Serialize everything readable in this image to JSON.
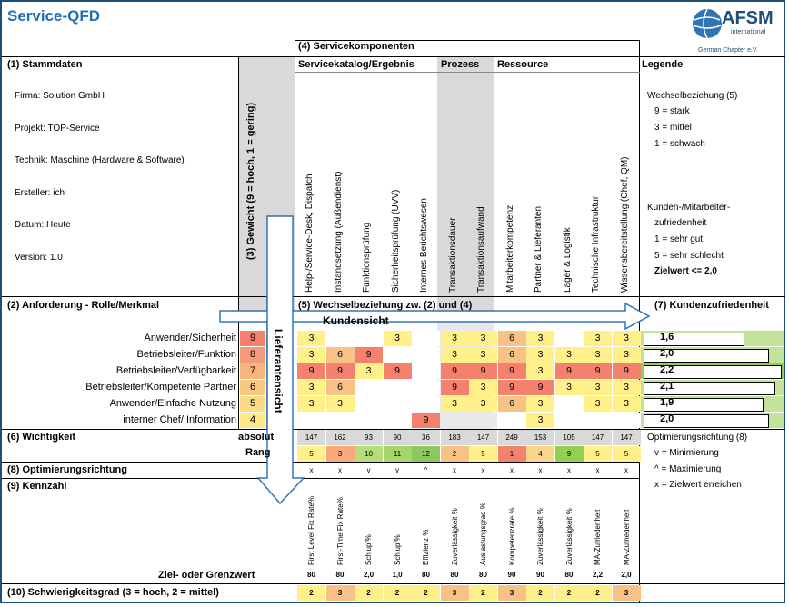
{
  "title": "Service-QFD",
  "logo": {
    "name": "AFSM",
    "sub1": "international",
    "sub2": "German Chapter e.V."
  },
  "sections": {
    "s4": "(4) Servicekomponenten",
    "s1": "(1) Stammdaten",
    "s2": "(2) Anforderung - Rolle/Merkmal",
    "s3": "(3) Gewicht (9 = hoch, 1 = gering)",
    "s5": "(5) Wechselbeziehung zw. (2) und (4)",
    "s6": "(6) Wichtigkeit",
    "s7": "(7) Kundenzufriedenheit",
    "s8": "(8) Optimierungsrichtung",
    "s9": "(9) Kennzahl",
    "s10": "(10) Schwierigkeitsgrad (3 = hoch, 2 = mittel)",
    "legend": "Legende"
  },
  "groups": {
    "katalog": "Servicekatalog/Ergebnis",
    "prozess": "Prozess",
    "ressource": "Ressource"
  },
  "stammdaten": [
    "Firma: Solution GmbH",
    "Projekt: TOP-Service",
    "Technik: Maschine (Hardware & Software)",
    "Ersteller: ich",
    "Datum: Heute",
    "Version: 1.0"
  ],
  "components": [
    "Help-/Service-Desk, Dispatch",
    "Instandsetzung (Außendienst)",
    "Funktionsprüfung",
    "Sicherheitsprüfung (UVV)",
    "Internes Berichtswesen",
    "Transaktionsdauer",
    "Transaktionsaufwand",
    "Mitarbeiterkompetenz",
    "Partner & Lieferanten",
    "Lager & Logistik",
    "Technische Infrastruktur",
    "Wissensbereitstellung (Chef, QM)"
  ],
  "legend": {
    "wb_title": "Wechselbeziehung (5)",
    "wb_items": [
      "9 = stark",
      "3 = mittel",
      "1 = schwach"
    ],
    "kz_title1": "Kunden-/Mitarbeiter-",
    "kz_title2": "zufriedenheit",
    "kz_items": [
      "1 = sehr gut",
      "5 = sehr schlecht"
    ],
    "zielwert": "Zielwert <= 2,0",
    "opt_title": "Optimierungsrichtung (8)",
    "opt_items": [
      "v = Minimierung",
      "^ = Maximierung",
      "x = Zielwert erreichen"
    ]
  },
  "arrows": {
    "kundensicht": "Kundensicht",
    "lieferantensicht": "Lieferantensicht"
  },
  "requirements": [
    {
      "label": "Anwender/Sicherheit",
      "weight": "9",
      "values": [
        "3",
        "",
        "",
        "3",
        "",
        "3",
        "3",
        "6",
        "3",
        "",
        "3",
        "3"
      ],
      "satisfaction": "1,6",
      "sat_value": 1.6
    },
    {
      "label": "Betriebsleiter/Funktion",
      "weight": "8",
      "values": [
        "3",
        "6",
        "9",
        "",
        "",
        "3",
        "3",
        "6",
        "3",
        "3",
        "3",
        "3"
      ],
      "satisfaction": "2,0",
      "sat_value": 2.0
    },
    {
      "label": "Betriebsleiter/Verfügbarkeit",
      "weight": "7",
      "values": [
        "9",
        "9",
        "3",
        "9",
        "",
        "9",
        "9",
        "9",
        "3",
        "9",
        "9",
        "9"
      ],
      "satisfaction": "2,2",
      "sat_value": 2.2
    },
    {
      "label": "Betriebsleiter/Kompetente Partner",
      "weight": "6",
      "values": [
        "3",
        "6",
        "",
        "",
        "",
        "9",
        "3",
        "9",
        "9",
        "3",
        "3",
        "3"
      ],
      "satisfaction": "2,1",
      "sat_value": 2.1
    },
    {
      "label": "Anwender/Einfache Nutzung",
      "weight": "5",
      "values": [
        "3",
        "3",
        "",
        "",
        "",
        "3",
        "3",
        "6",
        "3",
        "",
        "3",
        "3"
      ],
      "satisfaction": "1,9",
      "sat_value": 1.9
    },
    {
      "label": "interner Chef/ Information",
      "weight": "4",
      "values": [
        "",
        "",
        "",
        "",
        "9",
        "",
        "",
        "",
        "3",
        "",
        "",
        ""
      ],
      "satisfaction": "2,0",
      "sat_value": 2.0
    }
  ],
  "wichtigkeit": {
    "absolut_label": "absolut",
    "rang_label": "Rang",
    "absolut": [
      "147",
      "162",
      "93",
      "90",
      "36",
      "183",
      "147",
      "249",
      "153",
      "105",
      "147",
      "147"
    ],
    "rang": [
      "5",
      "3",
      "10",
      "11",
      "12",
      "2",
      "5",
      "1",
      "4",
      "9",
      "5",
      "5"
    ]
  },
  "optimierung": [
    "x",
    "x",
    "v",
    "v",
    "^",
    "x",
    "x",
    "x",
    "x",
    "x",
    "x",
    "x"
  ],
  "kennzahlen": [
    "First Level Fix Rate%",
    "First-Time Fix Rate%",
    "Schlupf%",
    "Schlupf%",
    "Effizienz %",
    "Zuverlässigkeit %",
    "Auslastungsgrad %",
    "Kompetenzrate %",
    "Zuverlässigkeit %",
    "Zuverlässigkeit %",
    "MA-Zufriedenheit",
    "MA-Zufriedenheit"
  ],
  "ziel_label": "Ziel- oder Grenzwert",
  "zielwerte": [
    "80",
    "80",
    "2,0",
    "1,0",
    "80",
    "80",
    "80",
    "90",
    "90",
    "80",
    "2,2",
    "2,0"
  ],
  "schwierigkeit": [
    "2",
    "3",
    "2",
    "2",
    "2",
    "3",
    "2",
    "3",
    "2",
    "2",
    "2",
    "3"
  ],
  "colors": {
    "v9": "#f4806e",
    "v6": "#f8c185",
    "v3": "#fff08a",
    "gray": "#d9d9d9",
    "green": "#92d050",
    "lightgreen": "#c4e39a",
    "title": "#1f6fb5",
    "arrow": "#2e75b6"
  }
}
